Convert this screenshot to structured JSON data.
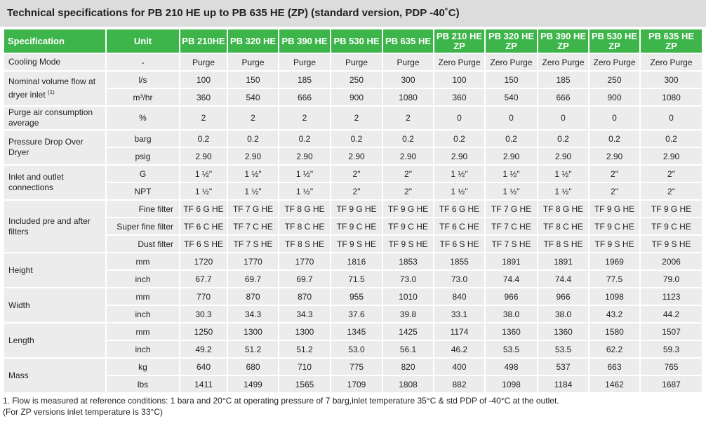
{
  "title": "Technical specifications for PB 210 HE up to PB 635 HE (ZP) (standard version, PDP -40˚C)",
  "table": {
    "header": [
      "Specification",
      "Unit",
      "PB 210HE",
      "PB 320 HE",
      "PB 390 HE",
      "PB 530 HE",
      "PB 635 HE",
      "PB 210 HE ZP",
      "PB 320 HE ZP",
      "PB 390 HE ZP",
      "PB 530 HE ZP",
      "PB 635 HE ZP"
    ],
    "groups": [
      {
        "spec": "Cooling Mode",
        "rows": [
          {
            "unit": "-",
            "values": [
              "Purge",
              "Purge",
              "Purge",
              "Purge",
              "Purge",
              "Zero Purge",
              "Zero Purge",
              "Zero Purge",
              "Zero Purge",
              "Zero Purge"
            ]
          }
        ]
      },
      {
        "spec": "Nominal volume flow at dryer inlet",
        "note": "(1)",
        "rows": [
          {
            "unit": "l/s",
            "values": [
              "100",
              "150",
              "185",
              "250",
              "300",
              "100",
              "150",
              "185",
              "250",
              "300"
            ]
          },
          {
            "unit": "m³/hr",
            "values": [
              "360",
              "540",
              "666",
              "900",
              "1080",
              "360",
              "540",
              "666",
              "900",
              "1080"
            ]
          }
        ]
      },
      {
        "spec": "Purge air consumption average",
        "tall": true,
        "rows": [
          {
            "unit": "%",
            "values": [
              "2",
              "2",
              "2",
              "2",
              "2",
              "0",
              "0",
              "0",
              "0",
              "0"
            ]
          }
        ]
      },
      {
        "spec": "Pressure Drop Over Dryer",
        "rows": [
          {
            "unit": "barg",
            "values": [
              "0.2",
              "0.2",
              "0.2",
              "0.2",
              "0.2",
              "0.2",
              "0.2",
              "0.2",
              "0.2",
              "0.2"
            ]
          },
          {
            "unit": "psig",
            "values": [
              "2.90",
              "2.90",
              "2.90",
              "2.90",
              "2.90",
              "2.90",
              "2.90",
              "2.90",
              "2.90",
              "2.90"
            ]
          }
        ]
      },
      {
        "spec": "Inlet and outlet connections",
        "rows": [
          {
            "unit": "G",
            "values": [
              "1 ½\"",
              "1 ½\"",
              "1 ½\"",
              "2\"",
              "2\"",
              "1 ½\"",
              "1 ½\"",
              "1 ½\"",
              "2\"",
              "2\""
            ]
          },
          {
            "unit": "NPT",
            "values": [
              "1 ½\"",
              "1 ½\"",
              "1 ½\"",
              "2\"",
              "2\"",
              "1 ½\"",
              "1 ½\"",
              "1 ½\"",
              "2\"",
              "2\""
            ]
          }
        ]
      },
      {
        "spec": "Included pre and after filters",
        "filters": true,
        "rows": [
          {
            "unit": "Fine filter",
            "values": [
              "TF 6 G HE",
              "TF 7 G HE",
              "TF 8 G HE",
              "TF 9 G HE",
              "TF 9 G HE",
              "TF 6 G HE",
              "TF 7 G HE",
              "TF 8 G HE",
              "TF 9 G HE",
              "TF 9 G HE"
            ]
          },
          {
            "unit": "Super fine filter",
            "values": [
              "TF 6 C HE",
              "TF 7 C HE",
              "TF 8 C HE",
              "TF 9 C HE",
              "TF 9 C HE",
              "TF 6 C HE",
              "TF 7 C HE",
              "TF 8 C HE",
              "TF 9 C HE",
              "TF 9 C HE"
            ]
          },
          {
            "unit": "Dust filter",
            "values": [
              "TF 6 S HE",
              "TF 7 S HE",
              "TF 8 S HE",
              "TF 9 S HE",
              "TF 9 S HE",
              "TF 6 S HE",
              "TF 7 S HE",
              "TF 8 S HE",
              "TF 9 S HE",
              "TF 9 S HE"
            ]
          }
        ]
      },
      {
        "spec": "Height",
        "rows": [
          {
            "unit": "mm",
            "values": [
              "1720",
              "1770",
              "1770",
              "1816",
              "1853",
              "1855",
              "1891",
              "1891",
              "1969",
              "2006"
            ]
          },
          {
            "unit": "inch",
            "values": [
              "67.7",
              "69.7",
              "69.7",
              "71.5",
              "73.0",
              "73.0",
              "74.4",
              "74.4",
              "77.5",
              "79.0"
            ]
          }
        ]
      },
      {
        "spec": "Width",
        "rows": [
          {
            "unit": "mm",
            "values": [
              "770",
              "870",
              "870",
              "955",
              "1010",
              "840",
              "966",
              "966",
              "1098",
              "1123"
            ]
          },
          {
            "unit": "inch",
            "values": [
              "30.3",
              "34.3",
              "34.3",
              "37.6",
              "39.8",
              "33.1",
              "38.0",
              "38.0",
              "43.2",
              "44.2"
            ]
          }
        ]
      },
      {
        "spec": "Length",
        "rows": [
          {
            "unit": "mm",
            "values": [
              "1250",
              "1300",
              "1300",
              "1345",
              "1425",
              "1174",
              "1360",
              "1360",
              "1580",
              "1507"
            ]
          },
          {
            "unit": "inch",
            "values": [
              "49.2",
              "51.2",
              "51.2",
              "53.0",
              "56.1",
              "46.2",
              "53.5",
              "53.5",
              "62.2",
              "59.3"
            ]
          }
        ]
      },
      {
        "spec": "Mass",
        "rows": [
          {
            "unit": "kg",
            "values": [
              "640",
              "680",
              "710",
              "775",
              "820",
              "400",
              "498",
              "537",
              "663",
              "765"
            ]
          },
          {
            "unit": "lbs",
            "values": [
              "1411",
              "1499",
              "1565",
              "1709",
              "1808",
              "882",
              "1098",
              "1184",
              "1462",
              "1687"
            ]
          }
        ]
      }
    ]
  },
  "notes": [
    "1. Flow is measured at reference conditions: 1 bara and 20°C at operating pressure of 7 barg,inlet temperature 35°C & std PDP of -40°C at the outlet.",
    "(For ZP versions inlet temperature is 33°C)"
  ]
}
